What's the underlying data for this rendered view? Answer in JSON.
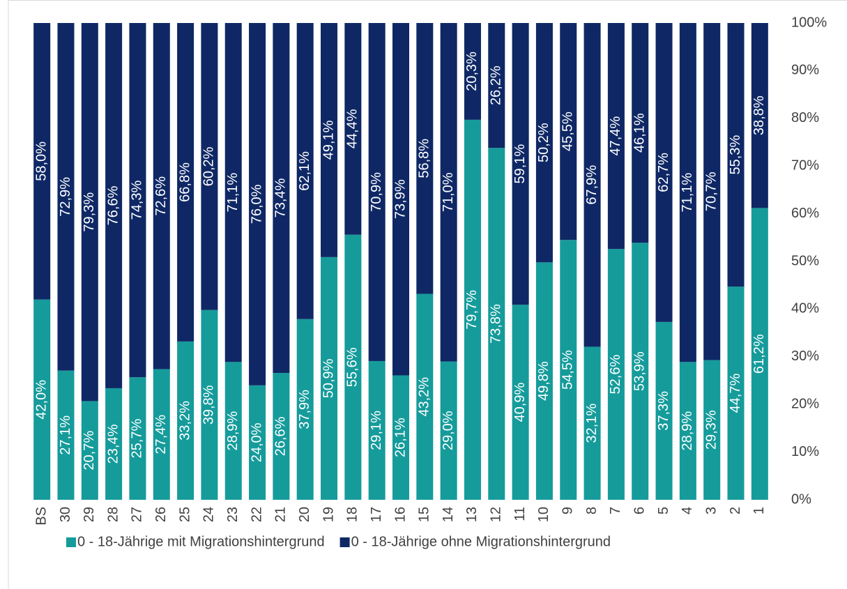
{
  "chart_data": {
    "type": "stacked_bar",
    "categories": [
      "BS",
      "30",
      "29",
      "28",
      "27",
      "26",
      "25",
      "24",
      "23",
      "22",
      "21",
      "20",
      "19",
      "18",
      "17",
      "16",
      "15",
      "14",
      "13",
      "12",
      "11",
      "10",
      "9",
      "8",
      "7",
      "6",
      "5",
      "4",
      "3",
      "2",
      "1"
    ],
    "series": [
      {
        "name": "0 - 18-Jährige mit Migrationshintergrund",
        "color": "#169b9b",
        "values": [
          42.0,
          27.1,
          20.7,
          23.4,
          25.7,
          27.4,
          33.2,
          39.8,
          28.9,
          24.0,
          26.6,
          37.9,
          50.9,
          55.6,
          29.1,
          26.1,
          43.2,
          29.0,
          79.7,
          73.8,
          40.9,
          49.8,
          54.5,
          32.1,
          52.6,
          53.9,
          37.3,
          28.9,
          29.3,
          44.7,
          61.2
        ],
        "value_labels": [
          "42,0%",
          "27,1%",
          "20,7%",
          "23,4%",
          "25,7%",
          "27,4%",
          "33,2%",
          "39,8%",
          "28,9%",
          "24,0%",
          "26,6%",
          "37,9%",
          "50,9%",
          "55,6%",
          "29,1%",
          "26,1%",
          "43,2%",
          "29,0%",
          "79,7%",
          "73,8%",
          "40,9%",
          "49,8%",
          "54,5%",
          "32,1%",
          "52,6%",
          "53,9%",
          "37,3%",
          "28,9%",
          "29,3%",
          "44,7%",
          "61,2%"
        ]
      },
      {
        "name": "0 - 18-Jährige ohne Migrationshintergrund",
        "color": "#0f2865",
        "values": [
          58.0,
          72.9,
          79.3,
          76.6,
          74.3,
          72.6,
          66.8,
          60.2,
          71.1,
          76.0,
          73.4,
          62.1,
          49.1,
          44.4,
          70.9,
          73.9,
          56.8,
          71.0,
          20.3,
          26.2,
          59.1,
          50.2,
          45.5,
          67.9,
          47.4,
          46.1,
          62.7,
          71.1,
          70.7,
          55.3,
          38.8
        ],
        "value_labels": [
          "58,0%",
          "72,9%",
          "79,3%",
          "76,6%",
          "74,3%",
          "72,6%",
          "66,8%",
          "60,2%",
          "71,1%",
          "76,0%",
          "73,4%",
          "62,1%",
          "49,1%",
          "44,4%",
          "70,9%",
          "73,9%",
          "56,8%",
          "71,0%",
          "20,3%",
          "26,2%",
          "59,1%",
          "50,2%",
          "45,5%",
          "67,9%",
          "47,4%",
          "46,1%",
          "62,7%",
          "71,1%",
          "70,7%",
          "55,3%",
          "38,8%"
        ]
      }
    ],
    "ylim": [
      0,
      100
    ],
    "yticks": [
      {
        "value": 0,
        "label": "0%"
      },
      {
        "value": 10,
        "label": "10%"
      },
      {
        "value": 20,
        "label": "20%"
      },
      {
        "value": 30,
        "label": "30%"
      },
      {
        "value": 40,
        "label": "40%"
      },
      {
        "value": 50,
        "label": "50%"
      },
      {
        "value": 60,
        "label": "60%"
      },
      {
        "value": 70,
        "label": "70%"
      },
      {
        "value": 80,
        "label": "80%"
      },
      {
        "value": 90,
        "label": "90%"
      },
      {
        "value": 100,
        "label": "100%"
      }
    ],
    "y_axis_side": "right",
    "grid": false,
    "legend": "bottom"
  }
}
